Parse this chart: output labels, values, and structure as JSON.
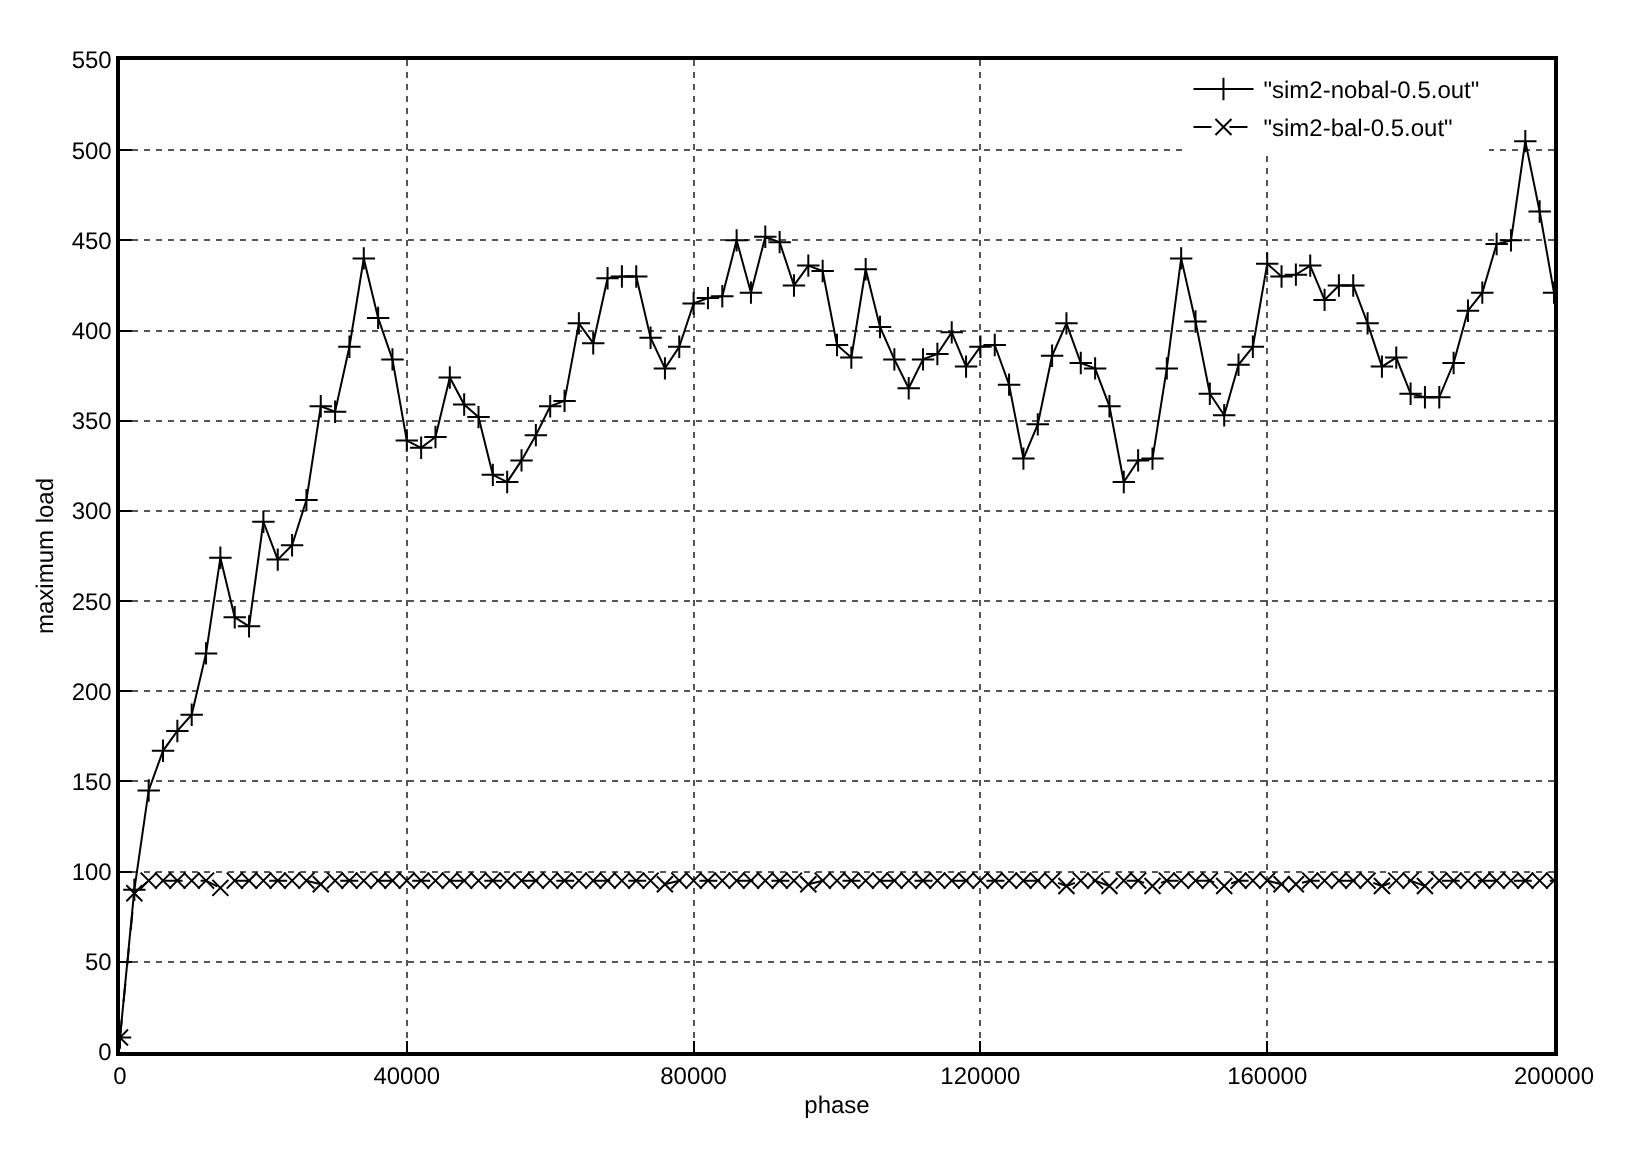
{
  "chart_data": {
    "type": "line",
    "xlabel": "phase",
    "ylabel": "maximum load",
    "xlim": [
      0,
      200000
    ],
    "xticks": [
      0,
      40000,
      80000,
      120000,
      160000,
      200000
    ],
    "ylim": [
      0,
      550
    ],
    "yticks": [
      0,
      50,
      100,
      150,
      200,
      250,
      300,
      350,
      400,
      450,
      500,
      550
    ],
    "grid": true,
    "legend": "top right",
    "x": [
      0,
      2000,
      4000,
      6000,
      8000,
      10000,
      12000,
      14000,
      16000,
      18000,
      20000,
      22000,
      24000,
      26000,
      28000,
      30000,
      32000,
      34000,
      36000,
      38000,
      40000,
      42000,
      44000,
      46000,
      48000,
      50000,
      52000,
      54000,
      56000,
      58000,
      60000,
      62000,
      64000,
      66000,
      68000,
      70000,
      72000,
      74000,
      76000,
      78000,
      80000,
      82000,
      84000,
      86000,
      88000,
      90000,
      92000,
      94000,
      96000,
      98000,
      100000,
      102000,
      104000,
      106000,
      108000,
      110000,
      112000,
      114000,
      116000,
      118000,
      120000,
      122000,
      124000,
      126000,
      128000,
      130000,
      132000,
      134000,
      136000,
      138000,
      140000,
      142000,
      144000,
      146000,
      148000,
      150000,
      152000,
      154000,
      156000,
      158000,
      160000,
      162000,
      164000,
      166000,
      168000,
      170000,
      172000,
      174000,
      176000,
      178000,
      180000,
      182000,
      184000,
      186000,
      188000,
      190000,
      192000,
      194000,
      196000,
      198000,
      200000
    ],
    "series": [
      {
        "name": "\"sim2-nobal-0.5.out\"",
        "color": "#000000",
        "marker": "cross",
        "line_style": "solid",
        "values": [
          8,
          90,
          145,
          167,
          178,
          187,
          221,
          274,
          241,
          236,
          294,
          273,
          281,
          306,
          358,
          355,
          391,
          440,
          407,
          384,
          339,
          335,
          341,
          374,
          359,
          352,
          320,
          316,
          328,
          342,
          358,
          361,
          404,
          393,
          429,
          430,
          430,
          396,
          379,
          391,
          415,
          418,
          419,
          450,
          421,
          452,
          449,
          425,
          436,
          433,
          392,
          385,
          434,
          402,
          384,
          368,
          384,
          387,
          399,
          380,
          391,
          392,
          370,
          329,
          348,
          386,
          404,
          382,
          379,
          358,
          316,
          328,
          329,
          379,
          440,
          405,
          365,
          353,
          381,
          391,
          437,
          430,
          431,
          436,
          417,
          425,
          425,
          404,
          380,
          385,
          365,
          363,
          363,
          382,
          411,
          421,
          448,
          450,
          505,
          466,
          421
        ]
      },
      {
        "name": "\"sim2-bal-0.5.out\"",
        "color": "#000000",
        "marker": "x",
        "line_style": "dashed",
        "values": [
          8,
          88,
          95,
          95,
          95,
          95,
          95,
          91,
          95,
          95,
          95,
          95,
          95,
          95,
          93,
          95,
          95,
          95,
          95,
          95,
          95,
          95,
          95,
          95,
          95,
          95,
          95,
          95,
          95,
          95,
          95,
          95,
          95,
          95,
          95,
          95,
          95,
          95,
          93,
          95,
          95,
          95,
          95,
          95,
          95,
          95,
          95,
          95,
          93,
          95,
          95,
          95,
          95,
          95,
          95,
          95,
          95,
          95,
          95,
          95,
          95,
          95,
          95,
          95,
          95,
          95,
          92,
          95,
          95,
          92,
          95,
          95,
          92,
          95,
          95,
          95,
          95,
          92,
          95,
          95,
          95,
          93,
          93,
          95,
          95,
          95,
          95,
          95,
          92,
          95,
          95,
          92,
          95,
          95,
          95,
          95,
          95,
          95,
          95,
          95,
          95
        ]
      }
    ]
  }
}
